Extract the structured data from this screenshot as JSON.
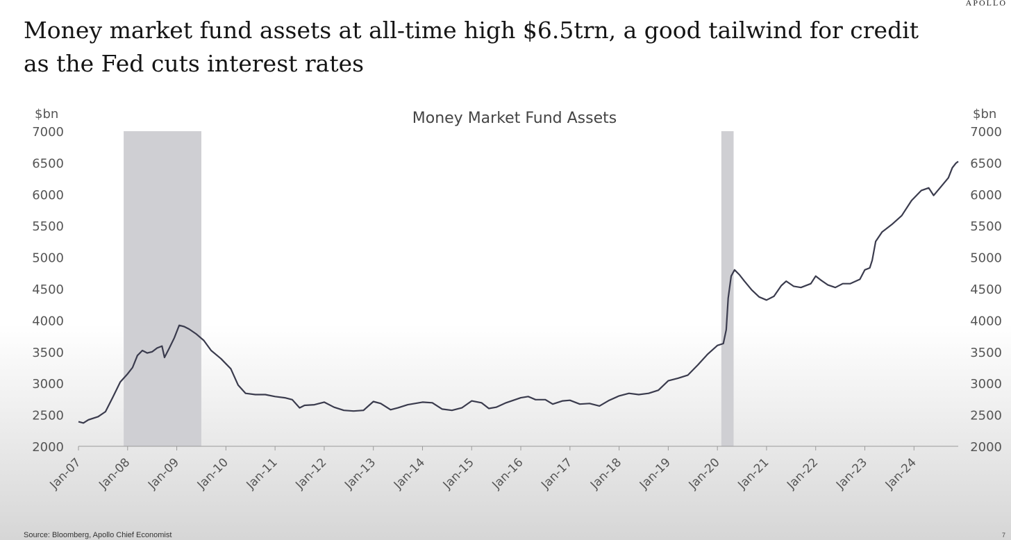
{
  "brand": "APOLLO",
  "headline": "Money market fund assets at all-time high $6.5trn, a good tailwind for credit as the Fed cuts interest rates",
  "source": "Source: Bloomberg, Apollo Chief Economist",
  "page_number": "7",
  "colors": {
    "line": "#3a3b4d",
    "shade": "#cfcfd3",
    "axis": "#9a9a9a",
    "text": "#555555"
  },
  "chart_data": {
    "type": "line",
    "title": "Money Market Fund Assets",
    "ylabel_left": "$bn",
    "ylabel_right": "$bn",
    "ylim": [
      2000,
      7000
    ],
    "yticks": [
      2000,
      2500,
      3000,
      3500,
      4000,
      4500,
      5000,
      5500,
      6000,
      6500,
      7000
    ],
    "xlim": [
      2007.0,
      2024.9
    ],
    "xticks": [
      {
        "x": 2007,
        "label": "Jan-07"
      },
      {
        "x": 2008,
        "label": "Jan-08"
      },
      {
        "x": 2009,
        "label": "Jan-09"
      },
      {
        "x": 2010,
        "label": "Jan-10"
      },
      {
        "x": 2011,
        "label": "Jan-11"
      },
      {
        "x": 2012,
        "label": "Jan-12"
      },
      {
        "x": 2013,
        "label": "Jan-13"
      },
      {
        "x": 2014,
        "label": "Jan-14"
      },
      {
        "x": 2015,
        "label": "Jan-15"
      },
      {
        "x": 2016,
        "label": "Jan-16"
      },
      {
        "x": 2017,
        "label": "Jan-17"
      },
      {
        "x": 2018,
        "label": "Jan-18"
      },
      {
        "x": 2019,
        "label": "Jan-19"
      },
      {
        "x": 2020,
        "label": "Jan-20"
      },
      {
        "x": 2021,
        "label": "Jan-21"
      },
      {
        "x": 2022,
        "label": "Jan-22"
      },
      {
        "x": 2023,
        "label": "Jan-23"
      },
      {
        "x": 2024,
        "label": "Jan-24"
      }
    ],
    "shaded_regions": [
      {
        "from": 2007.92,
        "to": 2009.5
      },
      {
        "from": 2020.08,
        "to": 2020.33
      }
    ],
    "series": [
      {
        "values": [
          [
            2007.0,
            2390
          ],
          [
            2007.1,
            2370
          ],
          [
            2007.2,
            2420
          ],
          [
            2007.4,
            2470
          ],
          [
            2007.55,
            2550
          ],
          [
            2007.7,
            2780
          ],
          [
            2007.85,
            3020
          ],
          [
            2008.0,
            3150
          ],
          [
            2008.1,
            3250
          ],
          [
            2008.2,
            3440
          ],
          [
            2008.3,
            3520
          ],
          [
            2008.4,
            3480
          ],
          [
            2008.5,
            3500
          ],
          [
            2008.6,
            3560
          ],
          [
            2008.7,
            3590
          ],
          [
            2008.75,
            3410
          ],
          [
            2008.85,
            3560
          ],
          [
            2008.95,
            3720
          ],
          [
            2009.05,
            3920
          ],
          [
            2009.15,
            3900
          ],
          [
            2009.25,
            3860
          ],
          [
            2009.4,
            3780
          ],
          [
            2009.55,
            3680
          ],
          [
            2009.7,
            3520
          ],
          [
            2009.9,
            3390
          ],
          [
            2010.1,
            3230
          ],
          [
            2010.25,
            2970
          ],
          [
            2010.4,
            2840
          ],
          [
            2010.6,
            2820
          ],
          [
            2010.8,
            2820
          ],
          [
            2011.0,
            2790
          ],
          [
            2011.2,
            2770
          ],
          [
            2011.35,
            2740
          ],
          [
            2011.5,
            2610
          ],
          [
            2011.6,
            2650
          ],
          [
            2011.8,
            2660
          ],
          [
            2012.0,
            2700
          ],
          [
            2012.2,
            2620
          ],
          [
            2012.4,
            2570
          ],
          [
            2012.6,
            2560
          ],
          [
            2012.8,
            2570
          ],
          [
            2013.0,
            2710
          ],
          [
            2013.15,
            2680
          ],
          [
            2013.35,
            2580
          ],
          [
            2013.5,
            2610
          ],
          [
            2013.7,
            2660
          ],
          [
            2014.0,
            2700
          ],
          [
            2014.2,
            2690
          ],
          [
            2014.4,
            2590
          ],
          [
            2014.6,
            2570
          ],
          [
            2014.8,
            2610
          ],
          [
            2015.0,
            2720
          ],
          [
            2015.2,
            2690
          ],
          [
            2015.35,
            2600
          ],
          [
            2015.5,
            2620
          ],
          [
            2015.7,
            2690
          ],
          [
            2016.0,
            2770
          ],
          [
            2016.15,
            2790
          ],
          [
            2016.3,
            2740
          ],
          [
            2016.5,
            2740
          ],
          [
            2016.65,
            2670
          ],
          [
            2016.85,
            2720
          ],
          [
            2017.0,
            2730
          ],
          [
            2017.2,
            2670
          ],
          [
            2017.4,
            2680
          ],
          [
            2017.6,
            2640
          ],
          [
            2017.8,
            2730
          ],
          [
            2018.0,
            2800
          ],
          [
            2018.2,
            2840
          ],
          [
            2018.4,
            2820
          ],
          [
            2018.6,
            2840
          ],
          [
            2018.8,
            2890
          ],
          [
            2019.0,
            3040
          ],
          [
            2019.2,
            3080
          ],
          [
            2019.4,
            3130
          ],
          [
            2019.6,
            3290
          ],
          [
            2019.8,
            3460
          ],
          [
            2020.0,
            3600
          ],
          [
            2020.12,
            3630
          ],
          [
            2020.18,
            3850
          ],
          [
            2020.22,
            4350
          ],
          [
            2020.28,
            4700
          ],
          [
            2020.35,
            4800
          ],
          [
            2020.45,
            4720
          ],
          [
            2020.55,
            4620
          ],
          [
            2020.7,
            4480
          ],
          [
            2020.85,
            4370
          ],
          [
            2021.0,
            4320
          ],
          [
            2021.15,
            4380
          ],
          [
            2021.3,
            4550
          ],
          [
            2021.4,
            4620
          ],
          [
            2021.55,
            4540
          ],
          [
            2021.7,
            4520
          ],
          [
            2021.9,
            4580
          ],
          [
            2022.0,
            4700
          ],
          [
            2022.1,
            4640
          ],
          [
            2022.25,
            4560
          ],
          [
            2022.4,
            4520
          ],
          [
            2022.55,
            4580
          ],
          [
            2022.7,
            4580
          ],
          [
            2022.9,
            4650
          ],
          [
            2023.0,
            4800
          ],
          [
            2023.1,
            4830
          ],
          [
            2023.15,
            4950
          ],
          [
            2023.22,
            5250
          ],
          [
            2023.35,
            5400
          ],
          [
            2023.55,
            5520
          ],
          [
            2023.75,
            5660
          ],
          [
            2023.95,
            5900
          ],
          [
            2024.15,
            6060
          ],
          [
            2024.3,
            6100
          ],
          [
            2024.4,
            5980
          ],
          [
            2024.55,
            6120
          ],
          [
            2024.7,
            6260
          ],
          [
            2024.78,
            6420
          ],
          [
            2024.85,
            6490
          ],
          [
            2024.9,
            6520
          ]
        ]
      }
    ]
  }
}
